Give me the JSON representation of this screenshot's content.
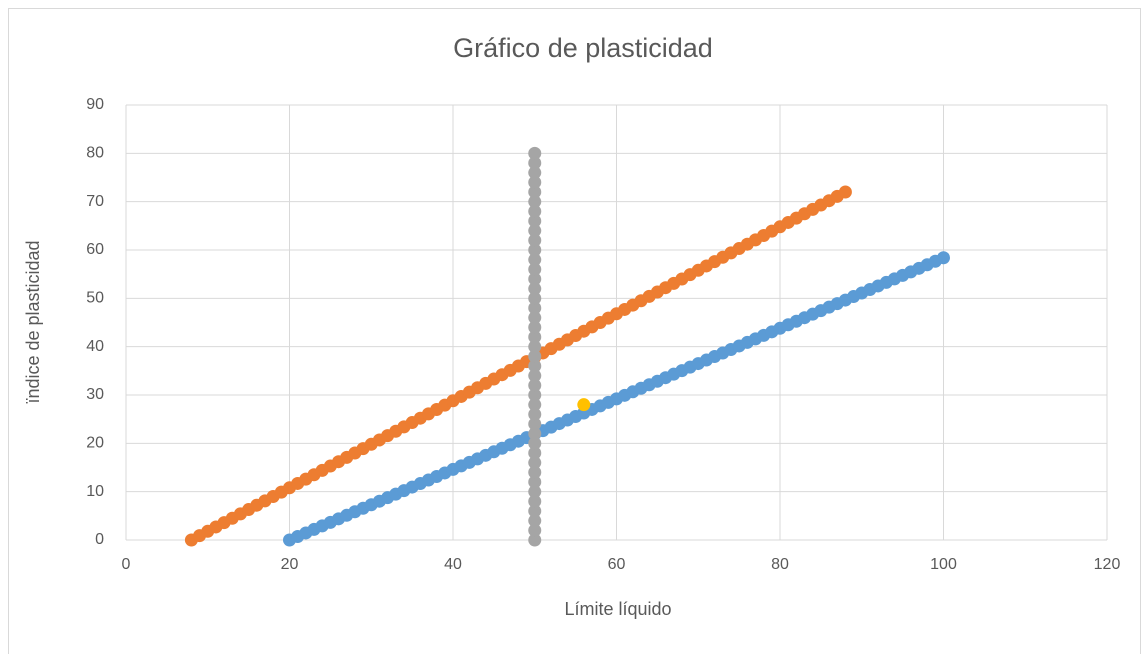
{
  "chart_data": {
    "type": "scatter",
    "title": "Gráfico de plasticidad",
    "xlabel": "Límite líquido",
    "ylabel": "ïndice de plasticidad",
    "xlim": [
      0,
      120
    ],
    "xticks": [
      0,
      20,
      40,
      60,
      80,
      100,
      120
    ],
    "ylim": [
      0,
      90
    ],
    "yticks": [
      0,
      10,
      20,
      30,
      40,
      50,
      60,
      70,
      80,
      90
    ],
    "grid": true,
    "series": [
      {
        "color": "#ed7d31",
        "x": [
          8,
          9,
          10,
          11,
          12,
          13,
          14,
          15,
          16,
          17,
          18,
          19,
          20,
          21,
          22,
          23,
          24,
          25,
          26,
          27,
          28,
          29,
          30,
          31,
          32,
          33,
          34,
          35,
          36,
          37,
          38,
          39,
          40,
          41,
          42,
          43,
          44,
          45,
          46,
          47,
          48,
          49,
          50,
          51,
          52,
          53,
          54,
          55,
          56,
          57,
          58,
          59,
          60,
          61,
          62,
          63,
          64,
          65,
          66,
          67,
          68,
          69,
          70,
          71,
          72,
          73,
          74,
          75,
          76,
          77,
          78,
          79,
          80,
          81,
          82,
          83,
          84,
          85,
          86,
          87,
          88
        ],
        "values": [
          0,
          0.9,
          1.8,
          2.7,
          3.6,
          4.5,
          5.4,
          6.3,
          7.2,
          8.1,
          9,
          9.9,
          10.8,
          11.7,
          12.6,
          13.5,
          14.4,
          15.3,
          16.2,
          17.1,
          18,
          18.9,
          19.8,
          20.7,
          21.6,
          22.5,
          23.4,
          24.3,
          25.2,
          26.1,
          27,
          27.9,
          28.8,
          29.7,
          30.6,
          31.5,
          32.4,
          33.3,
          34.2,
          35.1,
          36,
          36.9,
          37.8,
          38.7,
          39.6,
          40.5,
          41.4,
          42.3,
          43.2,
          44.1,
          45,
          45.9,
          46.8,
          47.7,
          48.6,
          49.5,
          50.4,
          51.3,
          52.2,
          53.1,
          54,
          54.9,
          55.8,
          56.7,
          57.6,
          58.5,
          59.4,
          60.3,
          61.2,
          62.1,
          63,
          63.9,
          64.8,
          65.7,
          66.6,
          67.5,
          68.4,
          69.3,
          70.2,
          71.1,
          72
        ]
      },
      {
        "color": "#5b9bd5",
        "x": [
          20,
          21,
          22,
          23,
          24,
          25,
          26,
          27,
          28,
          29,
          30,
          31,
          32,
          33,
          34,
          35,
          36,
          37,
          38,
          39,
          40,
          41,
          42,
          43,
          44,
          45,
          46,
          47,
          48,
          49,
          50,
          51,
          52,
          53,
          54,
          55,
          56,
          57,
          58,
          59,
          60,
          61,
          62,
          63,
          64,
          65,
          66,
          67,
          68,
          69,
          70,
          71,
          72,
          73,
          74,
          75,
          76,
          77,
          78,
          79,
          80,
          81,
          82,
          83,
          84,
          85,
          86,
          87,
          88,
          89,
          90,
          91,
          92,
          93,
          94,
          95,
          96,
          97,
          98,
          99,
          100
        ],
        "values": [
          0,
          0.73,
          1.46,
          2.19,
          2.92,
          3.65,
          4.38,
          5.11,
          5.84,
          6.57,
          7.3,
          8.03,
          8.76,
          9.49,
          10.22,
          10.95,
          11.68,
          12.41,
          13.14,
          13.87,
          14.6,
          15.33,
          16.06,
          16.79,
          17.52,
          18.25,
          18.98,
          19.71,
          20.44,
          21.17,
          21.9,
          22.63,
          23.36,
          24.09,
          24.82,
          25.55,
          26.28,
          27.01,
          27.74,
          28.47,
          29.2,
          29.93,
          30.66,
          31.39,
          32.12,
          32.85,
          33.58,
          34.31,
          35.04,
          35.77,
          36.5,
          37.23,
          37.96,
          38.69,
          39.42,
          40.15,
          40.88,
          41.61,
          42.34,
          43.07,
          43.8,
          44.53,
          45.26,
          45.99,
          46.72,
          47.45,
          48.18,
          48.91,
          49.64,
          50.37,
          51.1,
          51.83,
          52.56,
          53.29,
          54.02,
          54.75,
          55.48,
          56.21,
          56.94,
          57.67,
          58.4
        ]
      },
      {
        "color": "#a5a5a5",
        "x": [
          50,
          50,
          50,
          50,
          50,
          50,
          50,
          50,
          50,
          50,
          50,
          50,
          50,
          50,
          50,
          50,
          50,
          50,
          50,
          50,
          50,
          50,
          50,
          50,
          50,
          50,
          50,
          50,
          50,
          50,
          50,
          50,
          50,
          50,
          50,
          50,
          50,
          50,
          50,
          50,
          50
        ],
        "values": [
          0,
          2,
          4,
          6,
          8,
          10,
          12,
          14,
          16,
          18,
          20,
          22,
          24,
          26,
          28,
          30,
          32,
          34,
          36,
          38,
          40,
          42,
          44,
          46,
          48,
          50,
          52,
          54,
          56,
          58,
          60,
          62,
          64,
          66,
          68,
          70,
          72,
          74,
          76,
          78,
          80
        ]
      },
      {
        "color": "#ffc000",
        "x": [
          56
        ],
        "values": [
          28
        ]
      }
    ]
  }
}
